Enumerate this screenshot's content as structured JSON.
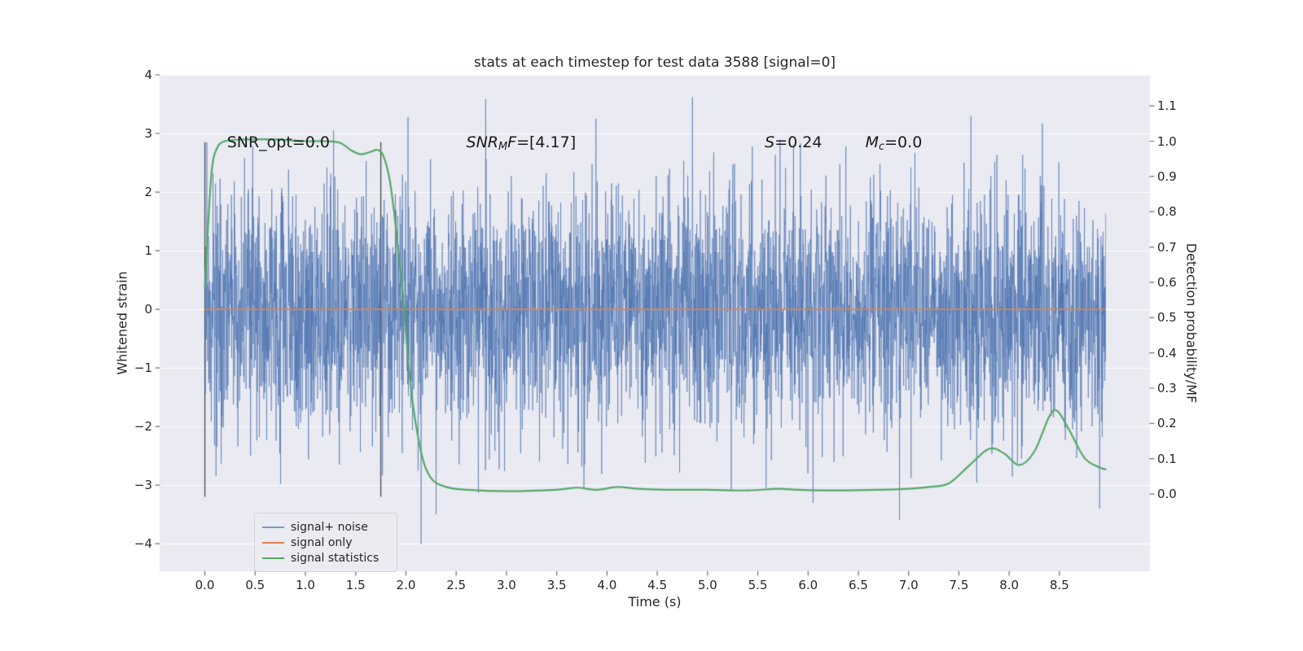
{
  "figure": {
    "title": "stats at each timestep for test data 3588 [signal=0]",
    "xlabel": "Time (s)",
    "ylabel_left": "Whitened strain",
    "ylabel_right": "Detection probability/MF",
    "axes_bg": "#eaeaf2",
    "grid_color": "#ffffff",
    "text_color": "#262626"
  },
  "chart_data": {
    "type": "line",
    "title": "stats at each timestep for test data 3588 [signal=0]",
    "xlabel": "Time (s)",
    "x_axis": {
      "lim": [
        -0.45,
        9.4
      ],
      "tick_values": [
        0.0,
        0.5,
        1.0,
        1.5,
        2.0,
        2.5,
        3.0,
        3.5,
        4.0,
        4.5,
        5.0,
        5.5,
        6.0,
        6.5,
        7.0,
        7.5,
        8.0,
        8.5
      ],
      "tick_labels": [
        "0.0",
        "0.5",
        "1.0",
        "1.5",
        "2.0",
        "2.5",
        "3.0",
        "3.5",
        "4.0",
        "4.5",
        "5.0",
        "5.5",
        "6.0",
        "6.5",
        "7.0",
        "7.5",
        "8.0",
        "8.5"
      ]
    },
    "y_axis_left": {
      "label": "Whitened strain",
      "lim": [
        -4.47,
        4.0
      ],
      "tick_values": [
        -4,
        -3,
        -2,
        -1,
        0,
        1,
        2,
        3,
        4
      ],
      "tick_labels": [
        "−4",
        "−3",
        "−2",
        "−1",
        "0",
        "1",
        "2",
        "3",
        "4"
      ]
    },
    "y_axis_right": {
      "label": "Detection probability/MF",
      "lim": [
        -0.219,
        1.188
      ],
      "tick_values": [
        0.0,
        0.1,
        0.2,
        0.3,
        0.4,
        0.5,
        0.6,
        0.7,
        0.8,
        0.9,
        1.0,
        1.1
      ],
      "tick_labels": [
        "0.0",
        "0.1",
        "0.2",
        "0.3",
        "0.4",
        "0.5",
        "0.6",
        "0.7",
        "0.8",
        "0.9",
        "1.0",
        "1.1"
      ]
    },
    "series": [
      {
        "name": "signal+ noise",
        "axis": "left",
        "kind": "gaussian_noise",
        "color": "rgba(76,114,176,0.62)",
        "mean": 0.0,
        "std": 1.0,
        "t_start": 0.0,
        "t_end": 8.96,
        "n_samples": 4200,
        "notable_extremes": [
          {
            "t": 0.02,
            "v": 2.85
          },
          {
            "t": 1.28,
            "v": 3.05
          },
          {
            "t": 2.02,
            "v": 3.28
          },
          {
            "t": 2.15,
            "v": -4.0
          },
          {
            "t": 2.3,
            "v": -3.5
          },
          {
            "t": 4.85,
            "v": 3.62
          },
          {
            "t": 6.05,
            "v": -3.3
          },
          {
            "t": 7.62,
            "v": 3.3
          },
          {
            "t": 8.33,
            "v": 3.17
          },
          {
            "t": 8.9,
            "v": -3.4
          }
        ]
      },
      {
        "name": "signal only",
        "axis": "left",
        "kind": "constant",
        "color": "#dd8452",
        "value": 0.0,
        "t_start": 0.0,
        "t_end": 8.96
      },
      {
        "name": "signal statistics",
        "axis": "right",
        "kind": "curve",
        "color": "#55a868",
        "points": [
          [
            0.0,
            0.585
          ],
          [
            0.03,
            0.75
          ],
          [
            0.07,
            0.92
          ],
          [
            0.12,
            0.98
          ],
          [
            0.2,
            1.0
          ],
          [
            0.4,
            1.005
          ],
          [
            0.7,
            1.005
          ],
          [
            1.0,
            1.0
          ],
          [
            1.2,
            1.0
          ],
          [
            1.35,
            0.995
          ],
          [
            1.45,
            0.975
          ],
          [
            1.55,
            0.963
          ],
          [
            1.65,
            0.97
          ],
          [
            1.72,
            0.975
          ],
          [
            1.78,
            0.955
          ],
          [
            1.85,
            0.87
          ],
          [
            1.95,
            0.62
          ],
          [
            2.05,
            0.3
          ],
          [
            2.15,
            0.12
          ],
          [
            2.25,
            0.045
          ],
          [
            2.4,
            0.02
          ],
          [
            2.6,
            0.012
          ],
          [
            3.0,
            0.008
          ],
          [
            3.5,
            0.012
          ],
          [
            3.7,
            0.018
          ],
          [
            3.9,
            0.012
          ],
          [
            4.1,
            0.02
          ],
          [
            4.3,
            0.015
          ],
          [
            4.6,
            0.012
          ],
          [
            5.0,
            0.012
          ],
          [
            5.4,
            0.01
          ],
          [
            5.7,
            0.015
          ],
          [
            5.9,
            0.012
          ],
          [
            6.3,
            0.01
          ],
          [
            6.7,
            0.012
          ],
          [
            7.0,
            0.015
          ],
          [
            7.2,
            0.02
          ],
          [
            7.4,
            0.03
          ],
          [
            7.6,
            0.08
          ],
          [
            7.8,
            0.128
          ],
          [
            7.95,
            0.115
          ],
          [
            8.1,
            0.082
          ],
          [
            8.25,
            0.12
          ],
          [
            8.4,
            0.22
          ],
          [
            8.48,
            0.235
          ],
          [
            8.6,
            0.18
          ],
          [
            8.75,
            0.102
          ],
          [
            8.9,
            0.075
          ],
          [
            8.96,
            0.07
          ]
        ]
      }
    ],
    "vlines": {
      "x": [
        0.0,
        1.75
      ],
      "y_min": -3.2,
      "y_max": 2.85,
      "color": "#4a4a4a"
    },
    "annotations": [
      {
        "id": "snr-opt-annotation",
        "x": 0.22,
        "y_top": 3.0,
        "segments": [
          {
            "text": "SNR_opt=0.0"
          }
        ]
      },
      {
        "id": "snr-mf-annotation",
        "x": 2.6,
        "y_top": 3.0,
        "segments": [
          {
            "text": "SNR",
            "italic": true
          },
          {
            "text": "M",
            "italic": true,
            "sub": true
          },
          {
            "text": "F",
            "italic": true
          },
          {
            "text": "=[4.17]"
          }
        ]
      },
      {
        "id": "s-stat-annotation",
        "x": 5.57,
        "y_top": 3.0,
        "segments": [
          {
            "text": "S",
            "italic": true
          },
          {
            "text": "=0.24"
          }
        ]
      },
      {
        "id": "mc-annotation",
        "x": 6.57,
        "y_top": 3.0,
        "segments": [
          {
            "text": "M",
            "italic": true
          },
          {
            "text": "c",
            "italic": true,
            "sub": true
          },
          {
            "text": "=0.0"
          }
        ]
      }
    ],
    "legend": {
      "position": "lower left",
      "items": [
        {
          "label": "signal+ noise",
          "color": "#7b9ace"
        },
        {
          "label": "signal only",
          "color": "#dd8452"
        },
        {
          "label": "signal statistics",
          "color": "#55a868"
        }
      ]
    }
  }
}
